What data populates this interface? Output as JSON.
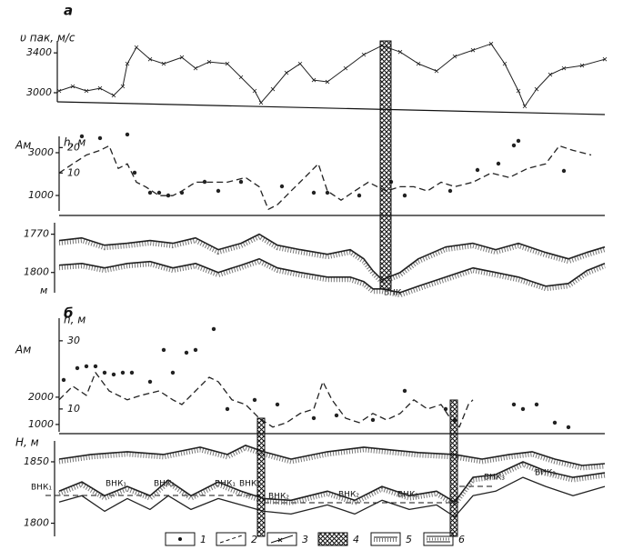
{
  "chart_data": [
    {
      "type": "line",
      "label": "а",
      "ylabel": "υ пак, м/с",
      "xlim": [
        0,
        600
      ],
      "ylim": [
        2790,
        3520
      ],
      "yticks": [
        3000,
        3400
      ],
      "series": [
        {
          "color": "#222",
          "style": "cross",
          "x": [
            0,
            15,
            30,
            45,
            60,
            70,
            75,
            85,
            100,
            115,
            135,
            150,
            165,
            185,
            200,
            215,
            222,
            235,
            250,
            265,
            280,
            295,
            315,
            335,
            355,
            375,
            395,
            415,
            435,
            455,
            475,
            490,
            505,
            512,
            525,
            540,
            555,
            575,
            600
          ],
          "values": [
            3018,
            3064,
            3018,
            3045,
            2973,
            3064,
            3291,
            3455,
            3336,
            3291,
            3355,
            3245,
            3309,
            3291,
            3155,
            3018,
            2900,
            3036,
            3200,
            3291,
            3127,
            3109,
            3245,
            3382,
            3473,
            3409,
            3291,
            3218,
            3364,
            3427,
            3491,
            3291,
            3018,
            2864,
            3036,
            3182,
            3245,
            3273,
            3336
          ]
        }
      ]
    },
    {
      "type": "line",
      "ylabel": "Aм",
      "y2label": "h, м",
      "xlim": [
        0,
        600
      ],
      "ylim": [
        150,
        4190
      ],
      "yticks": [
        1000,
        3000
      ],
      "y2lim": [
        -6,
        28
      ],
      "y2ticks": [
        10,
        20
      ],
      "series": [
        {
          "color": "#222",
          "style": "dots",
          "x": [
            25,
            45,
            75,
            83,
            100,
            110,
            120,
            135,
            160,
            175,
            200,
            245,
            280,
            295,
            330,
            365,
            380,
            430,
            460,
            483,
            500,
            505,
            555
          ],
          "values": [
            3766,
            3681,
            3851,
            2064,
            1128,
            1128,
            1000,
            1128,
            1638,
            1213,
            1638,
            1426,
            1128,
            1128,
            1000,
            1638,
            1000,
            1213,
            2191,
            2489,
            3340,
            3553,
            2149
          ]
        },
        {
          "color": "#222",
          "style": "dashed",
          "axis": "y2",
          "x": [
            0,
            15,
            30,
            45,
            55,
            65,
            75,
            85,
            95,
            110,
            125,
            135,
            150,
            165,
            185,
            205,
            220,
            230,
            240,
            255,
            270,
            285,
            295,
            310,
            325,
            340,
            350,
            360,
            375,
            390,
            405,
            420,
            435,
            455,
            475,
            495,
            515,
            535,
            550,
            565,
            585
          ],
          "values": [
            10,
            13.6,
            17.1,
            18.9,
            20.7,
            11.8,
            13.6,
            6.4,
            4.6,
            1.1,
            1.1,
            2.9,
            6.4,
            6.4,
            6.4,
            8.2,
            4.6,
            -4.3,
            -2.5,
            2.9,
            8.2,
            13.6,
            2.9,
            -0.7,
            2.9,
            6.4,
            4.6,
            2.9,
            4.6,
            4.6,
            2.9,
            6.4,
            4.6,
            6.4,
            10,
            8.2,
            11.8,
            13.6,
            20.7,
            18.9,
            17.1
          ]
        }
      ]
    },
    {
      "type": "line",
      "yunit": "м",
      "inverted": true,
      "xlim": [
        0,
        600
      ],
      "ylim": [
        1761,
        1818
      ],
      "yticks": [
        1770,
        1800
      ],
      "annotations": [
        "ВНК"
      ],
      "series": [
        {
          "color": "#222",
          "style": "hatched",
          "x": [
            0,
            25,
            50,
            75,
            100,
            125,
            150,
            175,
            200,
            220,
            240,
            265,
            295,
            320,
            335,
            345,
            355,
            375,
            395,
            425,
            455,
            480,
            505,
            535,
            560,
            580,
            600
          ],
          "values": [
            1775,
            1772.9,
            1778.6,
            1777.1,
            1775,
            1777.1,
            1772.9,
            1782.1,
            1777.1,
            1770,
            1778.6,
            1782.1,
            1785.7,
            1782.1,
            1789.3,
            1798.6,
            1805.7,
            1800,
            1789.3,
            1780,
            1777.1,
            1782.1,
            1777.1,
            1784.3,
            1789.3,
            1784.3,
            1780
          ]
        },
        {
          "color": "#222",
          "style": "hatched",
          "x": [
            0,
            25,
            50,
            75,
            100,
            125,
            150,
            175,
            200,
            220,
            240,
            265,
            295,
            320,
            335,
            345,
            355,
            375,
            395,
            425,
            455,
            480,
            505,
            535,
            560,
            580,
            600
          ],
          "values": [
            1794.3,
            1792.9,
            1796.4,
            1792.9,
            1791.4,
            1796.4,
            1792.9,
            1800,
            1794.3,
            1789.3,
            1796.4,
            1800,
            1803.6,
            1803.6,
            1807.1,
            1812.9,
            1812.9,
            1815.7,
            1810.7,
            1803.6,
            1796.4,
            1800,
            1803.6,
            1810.7,
            1808.6,
            1798.6,
            1792.9
          ]
        }
      ]
    },
    {
      "type": "line",
      "label": "б",
      "ylabel": "Aм",
      "y2label": "h, м",
      "xlim": [
        0,
        600
      ],
      "ylim": [
        730,
        5230
      ],
      "yticks": [
        1000,
        2000
      ],
      "y2lim": [
        3.3,
        39.3
      ],
      "y2ticks": [
        10,
        30
      ],
      "series": [
        {
          "color": "#222",
          "style": "dots",
          "x": [
            5,
            20,
            30,
            40,
            50,
            60,
            70,
            80,
            100,
            115,
            125,
            140,
            150,
            170,
            185,
            215,
            240,
            280,
            305,
            345,
            380,
            425,
            435,
            500,
            510,
            525,
            545,
            560
          ],
          "values": [
            2633,
            3067,
            3133,
            3133,
            2900,
            2833,
            2900,
            2900,
            2567,
            3733,
            2900,
            3633,
            3733,
            4500,
            1567,
            1900,
            1733,
            1233,
            1333,
            1167,
            2233,
            1567,
            1167,
            1733,
            1567,
            1733,
            1067,
            900
          ]
        },
        {
          "color": "#222",
          "style": "dashed",
          "axis": "y2",
          "x": [
            0,
            15,
            30,
            40,
            55,
            75,
            90,
            110,
            125,
            135,
            150,
            165,
            175,
            190,
            205,
            220,
            235,
            250,
            265,
            280,
            290,
            300,
            315,
            330,
            345,
            360,
            375,
            390,
            405,
            420,
            430,
            440,
            450,
            455
          ],
          "values": [
            12.7,
            16.7,
            14,
            20.7,
            15.3,
            12.7,
            14,
            15.3,
            12.7,
            11.3,
            15.3,
            19.3,
            18,
            12.7,
            11.3,
            7.3,
            4.7,
            6,
            8.7,
            10,
            18,
            12.7,
            7.3,
            6,
            8.7,
            6.8,
            8.7,
            12.7,
            10,
            11.3,
            7.3,
            4.7,
            11.3,
            12.7
          ]
        }
      ]
    },
    {
      "type": "line",
      "ylabel": "H, м",
      "xlim": [
        0,
        600
      ],
      "ylim": [
        1793,
        1867
      ],
      "yticks": [
        1800,
        1850
      ],
      "annotations": [
        "ВНК₁",
        "ВНК₁",
        "ВНК₁",
        "ВНК₁",
        "ВНК₁",
        "ВНК₂",
        "ВНК₂",
        "ВНК₂",
        "ВНК₃",
        "ВНК₃"
      ],
      "series": [
        {
          "color": "#222",
          "style": "hatched",
          "x": [
            0,
            35,
            75,
            115,
            155,
            185,
            205,
            225,
            255,
            295,
            335,
            365,
            395,
            435,
            465,
            495,
            520,
            545,
            575,
            600
          ],
          "values": [
            1852.2,
            1856,
            1858.2,
            1856,
            1861.9,
            1856,
            1863.4,
            1858.2,
            1852.2,
            1858.2,
            1861.9,
            1859.7,
            1857.5,
            1856,
            1852.2,
            1856,
            1858.2,
            1852.2,
            1847,
            1848.5
          ]
        },
        {
          "color": "#222",
          "style": "hatched",
          "x": [
            0,
            25,
            50,
            75,
            100,
            120,
            145,
            175,
            200,
            225,
            255,
            295,
            325,
            355,
            385,
            415,
            435,
            455,
            480,
            510,
            535,
            565,
            600
          ],
          "values": [
            1826.1,
            1833.6,
            1822.4,
            1829.9,
            1822.4,
            1835.1,
            1822.4,
            1833.6,
            1826.1,
            1820.1,
            1818.7,
            1826.1,
            1818.7,
            1829.9,
            1822.4,
            1826.1,
            1817.2,
            1837.3,
            1839.6,
            1850,
            1842.5,
            1837.3,
            1841
          ]
        },
        {
          "color": "#222",
          "style": "solid",
          "x": [
            0,
            25,
            50,
            75,
            100,
            120,
            145,
            175,
            200,
            225,
            255,
            295,
            325,
            355,
            385,
            415,
            435,
            455,
            480,
            510,
            535,
            565,
            600
          ],
          "values": [
            1817.2,
            1822.4,
            1809.7,
            1820.1,
            1811.2,
            1822.4,
            1811.2,
            1820.1,
            1814.9,
            1809.7,
            1807.5,
            1814.9,
            1807.5,
            1818.7,
            1811.2,
            1814.9,
            1805.2,
            1822.4,
            1826.1,
            1837.3,
            1829.9,
            1822.4,
            1829.9
          ]
        }
      ]
    }
  ],
  "legend": [
    "1",
    "2",
    "3",
    "4",
    "5",
    "6"
  ]
}
